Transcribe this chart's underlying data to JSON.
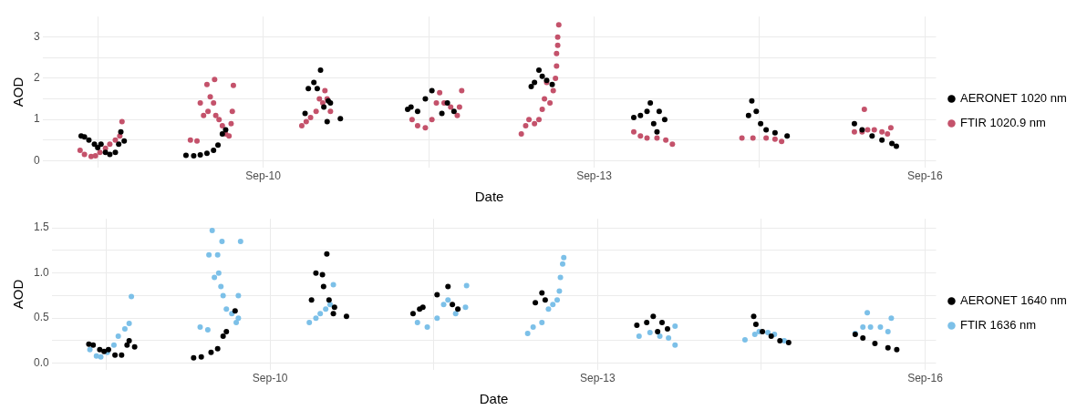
{
  "chart_data": [
    {
      "type": "scatter",
      "xlabel": "Date",
      "ylabel": "AOD",
      "xlim": [
        "--09-08T00:00",
        "--09-16T02:24"
      ],
      "ylim": [
        -0.16,
        3.5
      ],
      "xticks": [
        {
          "value": "--09-08T12:00",
          "label": null
        },
        {
          "value": "--09-10",
          "label": "Sep-10"
        },
        {
          "value": "--09-11T12:00",
          "label": null
        },
        {
          "value": "--09-13",
          "label": "Sep-13"
        },
        {
          "value": "--09-14T12:00",
          "label": null
        },
        {
          "value": "--09-16",
          "label": "Sep-16"
        }
      ],
      "yticks": [
        0,
        {
          "value": 0.5,
          "label": null
        },
        1,
        {
          "value": 1.5,
          "label": null
        },
        2,
        {
          "value": 2.5,
          "label": null
        },
        3
      ],
      "grid": true,
      "legend": "right",
      "marker": "circle",
      "series": [
        {
          "name": "AERONET 1020 nm",
          "color": "#000000",
          "x": [
            "--09-08T08:24",
            "--09-08T09:07",
            "--09-08T10:05",
            "--09-08T11:17",
            "--09-08T12:00",
            "--09-08T12:43",
            "--09-08T13:41",
            "--09-08T14:38",
            "--09-08T15:50",
            "--09-08T16:34",
            "--09-08T17:02",
            "--09-08T17:46",
            "--09-09T07:12",
            "--09-09T08:53",
            "--09-09T10:19",
            "--09-09T11:46",
            "--09-09T13:12",
            "--09-09T14:10",
            "--09-09T15:07",
            "--09-09T15:50",
            "--09-10T09:07",
            "--09-10T09:50",
            "--09-10T11:02",
            "--09-10T11:46",
            "--09-10T12:29",
            "--09-10T13:12",
            "--09-10T13:55",
            "--09-10T14:10",
            "--09-10T14:38",
            "--09-10T16:48",
            "--09-11T07:26",
            "--09-11T08:10",
            "--09-11T09:36",
            "--09-11T11:17",
            "--09-11T12:43",
            "--09-11T14:53",
            "--09-11T16:05",
            "--09-11T17:31",
            "--09-12T10:19",
            "--09-12T11:02",
            "--09-12T12:00",
            "--09-12T12:43",
            "--09-12T13:41",
            "--09-12T14:53",
            "--09-13T08:38",
            "--09-13T10:05",
            "--09-13T11:31",
            "--09-13T12:14",
            "--09-13T12:58",
            "--09-13T13:41",
            "--09-13T14:10",
            "--09-13T15:22",
            "--09-14T09:36",
            "--09-14T10:19",
            "--09-14T11:17",
            "--09-14T12:14",
            "--09-14T13:26",
            "--09-14T15:22",
            "--09-14T18:00",
            "--09-15T08:38",
            "--09-15T10:19",
            "--09-15T12:29",
            "--09-15T14:38",
            "--09-15T16:48",
            "--09-15T17:46"
          ],
          "values": [
            0.6,
            0.58,
            0.5,
            0.4,
            0.32,
            0.4,
            0.2,
            0.15,
            0.2,
            0.4,
            0.7,
            0.48,
            0.13,
            0.12,
            0.14,
            0.18,
            0.25,
            0.38,
            0.65,
            0.75,
            1.15,
            1.75,
            1.9,
            1.75,
            2.2,
            1.3,
            0.95,
            1.45,
            1.4,
            1.02,
            1.25,
            1.3,
            1.2,
            1.5,
            1.7,
            1.15,
            1.4,
            1.2,
            1.8,
            1.9,
            2.2,
            2.05,
            1.95,
            1.85,
            1.05,
            1.1,
            1.2,
            1.4,
            0.9,
            0.7,
            1.2,
            1.0,
            1.1,
            1.45,
            1.2,
            0.9,
            0.75,
            0.68,
            0.6,
            0.9,
            0.75,
            0.6,
            0.5,
            0.42,
            0.35
          ]
        },
        {
          "name": "FTIR 1020.9 nm",
          "color": "#c4526b",
          "x": [
            "--09-08T08:10",
            "--09-08T09:07",
            "--09-08T10:34",
            "--09-08T11:31",
            "--09-08T12:29",
            "--09-08T13:41",
            "--09-08T14:38",
            "--09-08T15:50",
            "--09-08T16:48",
            "--09-08T17:17",
            "--09-09T08:10",
            "--09-09T09:36",
            "--09-09T10:19",
            "--09-09T11:02",
            "--09-09T11:46",
            "--09-09T12:00",
            "--09-09T12:29",
            "--09-09T13:12",
            "--09-09T13:26",
            "--09-09T13:41",
            "--09-09T14:24",
            "--09-09T15:07",
            "--09-09T15:50",
            "--09-09T16:34",
            "--09-09T17:02",
            "--09-09T17:17",
            "--09-09T17:31",
            "--09-10T08:24",
            "--09-10T09:22",
            "--09-10T10:19",
            "--09-10T11:31",
            "--09-10T12:14",
            "--09-10T12:58",
            "--09-10T13:26",
            "--09-10T13:55",
            "--09-10T14:38",
            "--09-11T08:24",
            "--09-11T09:36",
            "--09-11T11:17",
            "--09-11T12:43",
            "--09-11T13:41",
            "--09-11T14:24",
            "--09-11T15:22",
            "--09-11T16:48",
            "--09-11T18:14",
            "--09-11T18:43",
            "--09-11T19:12",
            "--09-12T08:10",
            "--09-12T09:07",
            "--09-12T09:50",
            "--09-12T11:02",
            "--09-12T12:00",
            "--09-12T12:43",
            "--09-12T13:12",
            "--09-12T13:41",
            "--09-12T14:24",
            "--09-12T15:07",
            "--09-12T15:36",
            "--09-12T15:50",
            "--09-12T15:50",
            "--09-12T16:05",
            "--09-12T16:05",
            "--09-12T16:19",
            "--09-13T08:38",
            "--09-13T10:05",
            "--09-13T11:31",
            "--09-13T13:41",
            "--09-13T15:36",
            "--09-13T17:02",
            "--09-14T08:10",
            "--09-14T10:34",
            "--09-14T13:26",
            "--09-14T15:22",
            "--09-14T16:48",
            "--09-15T08:38",
            "--09-15T10:19",
            "--09-15T10:48",
            "--09-15T11:31",
            "--09-15T12:58",
            "--09-15T14:38",
            "--09-15T15:50",
            "--09-15T16:34"
          ],
          "values": [
            0.25,
            0.15,
            0.1,
            0.12,
            0.2,
            0.3,
            0.4,
            0.5,
            0.6,
            0.95,
            0.5,
            0.48,
            1.4,
            1.1,
            1.85,
            1.2,
            1.55,
            1.4,
            1.97,
            1.1,
            1.0,
            0.85,
            0.65,
            0.6,
            0.9,
            1.2,
            1.83,
            0.85,
            0.95,
            1.05,
            1.2,
            1.5,
            1.4,
            1.7,
            1.5,
            1.2,
            1.0,
            0.85,
            0.8,
            1.0,
            1.4,
            1.65,
            1.4,
            1.3,
            1.1,
            1.3,
            1.7,
            0.65,
            0.85,
            1.0,
            0.9,
            1.0,
            1.25,
            1.5,
            1.9,
            1.4,
            1.7,
            2.0,
            2.3,
            2.6,
            2.8,
            3.0,
            3.3,
            0.7,
            0.6,
            0.55,
            0.55,
            0.5,
            0.4,
            0.55,
            0.55,
            0.55,
            0.52,
            0.47,
            0.7,
            0.7,
            1.25,
            0.75,
            0.75,
            0.7,
            0.65,
            0.8
          ]
        }
      ]
    },
    {
      "type": "scatter",
      "xlabel": "Date",
      "ylabel": "AOD",
      "xlim": [
        "--09-08T00:00",
        "--09-16T02:24"
      ],
      "ylim": [
        -0.07,
        1.6
      ],
      "xticks": [
        {
          "value": "--09-08T12:00",
          "label": null
        },
        {
          "value": "--09-10",
          "label": "Sep-10"
        },
        {
          "value": "--09-11T12:00",
          "label": null
        },
        {
          "value": "--09-13",
          "label": "Sep-13"
        },
        {
          "value": "--09-14T12:00",
          "label": null
        },
        {
          "value": "--09-16",
          "label": "Sep-16"
        }
      ],
      "yticks": [
        {
          "value": 0,
          "label": "0.0"
        },
        {
          "value": 0.25,
          "label": null
        },
        0.5,
        {
          "value": 0.75,
          "label": null
        },
        {
          "value": 1,
          "label": "1.0"
        },
        {
          "value": 1.25,
          "label": null
        },
        1.5
      ],
      "grid": true,
      "legend": "right",
      "marker": "circle",
      "series": [
        {
          "name": "AERONET 1640 nm",
          "color": "#000000",
          "x": [
            "--09-08T08:10",
            "--09-08T09:07",
            "--09-08T10:34",
            "--09-08T11:31",
            "--09-08T12:29",
            "--09-08T13:55",
            "--09-08T15:22",
            "--09-08T16:34",
            "--09-08T17:02",
            "--09-08T18:14",
            "--09-09T07:12",
            "--09-09T08:53",
            "--09-09T11:02",
            "--09-09T12:29",
            "--09-09T13:41",
            "--09-09T14:24",
            "--09-09T16:19",
            "--09-10T09:07",
            "--09-10T10:05",
            "--09-10T11:31",
            "--09-10T11:46",
            "--09-10T12:29",
            "--09-10T12:58",
            "--09-10T13:55",
            "--09-10T14:10",
            "--09-10T16:48",
            "--09-11T07:26",
            "--09-11T08:53",
            "--09-11T09:36",
            "--09-11T12:43",
            "--09-11T15:07",
            "--09-11T16:05",
            "--09-11T17:17",
            "--09-12T10:19",
            "--09-12T11:46",
            "--09-12T12:29",
            "--09-13T08:38",
            "--09-13T10:48",
            "--09-13T12:14",
            "--09-13T13:12",
            "--09-13T14:10",
            "--09-13T15:22",
            "--09-14T10:19",
            "--09-14T10:48",
            "--09-14T12:14",
            "--09-14T14:10",
            "--09-14T16:05",
            "--09-14T18:00",
            "--09-15T08:38",
            "--09-15T10:19",
            "--09-15T12:58",
            "--09-15T15:50",
            "--09-15T17:46"
          ],
          "values": [
            0.21,
            0.2,
            0.15,
            0.13,
            0.15,
            0.09,
            0.09,
            0.2,
            0.25,
            0.18,
            0.06,
            0.07,
            0.12,
            0.16,
            0.3,
            0.35,
            0.58,
            0.7,
            1.0,
            0.98,
            0.85,
            1.21,
            0.7,
            0.55,
            0.62,
            0.52,
            0.55,
            0.6,
            0.62,
            0.76,
            0.85,
            0.65,
            0.6,
            0.67,
            0.78,
            0.7,
            0.42,
            0.45,
            0.52,
            0.35,
            0.45,
            0.38,
            0.52,
            0.43,
            0.35,
            0.3,
            0.25,
            0.23,
            0.32,
            0.28,
            0.22,
            0.17,
            0.15
          ]
        },
        {
          "name": "FTIR 1636 nm",
          "color": "#7cc0e8",
          "x": [
            "--09-08T08:24",
            "--09-08T09:50",
            "--09-08T10:48",
            "--09-08T12:14",
            "--09-08T13:41",
            "--09-08T14:38",
            "--09-08T16:05",
            "--09-08T17:02",
            "--09-08T17:31",
            "--09-09T08:38",
            "--09-09T10:19",
            "--09-09T10:34",
            "--09-09T11:17",
            "--09-09T11:46",
            "--09-09T12:29",
            "--09-09T12:43",
            "--09-09T13:12",
            "--09-09T13:26",
            "--09-09T13:41",
            "--09-09T14:24",
            "--09-09T15:36",
            "--09-09T16:34",
            "--09-09T17:02",
            "--09-09T17:02",
            "--09-09T17:31",
            "--09-10T08:38",
            "--09-10T10:05",
            "--09-10T11:02",
            "--09-10T12:14",
            "--09-10T13:12",
            "--09-10T13:55",
            "--09-11T08:24",
            "--09-11T10:34",
            "--09-11T12:43",
            "--09-11T14:10",
            "--09-11T15:07",
            "--09-11T16:48",
            "--09-11T18:58",
            "--09-11T19:12",
            "--09-12T08:38",
            "--09-12T09:50",
            "--09-12T11:46",
            "--09-12T13:12",
            "--09-12T14:10",
            "--09-12T15:07",
            "--09-12T15:36",
            "--09-12T15:50",
            "--09-12T16:19",
            "--09-12T16:34",
            "--09-13T09:07",
            "--09-13T11:31",
            "--09-13T13:41",
            "--09-13T15:36",
            "--09-13T17:02",
            "--09-13T17:02",
            "--09-14T08:24",
            "--09-14T10:34",
            "--09-14T11:31",
            "--09-14T13:26",
            "--09-14T14:53",
            "--09-14T17:02",
            "--09-15T08:38",
            "--09-15T10:19",
            "--09-15T11:17",
            "--09-15T12:00",
            "--09-15T14:10",
            "--09-15T15:50",
            "--09-15T16:34"
          ],
          "values": [
            0.15,
            0.08,
            0.07,
            0.12,
            0.2,
            0.3,
            0.38,
            0.44,
            0.74,
            0.4,
            0.37,
            1.2,
            1.47,
            0.95,
            1.2,
            1.0,
            0.85,
            1.35,
            0.75,
            0.6,
            0.55,
            0.45,
            0.5,
            0.75,
            1.35,
            0.45,
            0.5,
            0.55,
            0.6,
            0.65,
            0.87,
            0.45,
            0.4,
            0.5,
            0.65,
            0.7,
            0.55,
            0.62,
            0.86,
            0.33,
            0.4,
            0.45,
            0.6,
            0.65,
            0.7,
            0.8,
            0.95,
            1.1,
            1.17,
            0.3,
            0.34,
            0.3,
            0.28,
            0.2,
            0.41,
            0.26,
            0.32,
            0.35,
            0.34,
            0.32,
            0.25,
            0.33,
            0.4,
            0.56,
            0.4,
            0.4,
            0.35,
            0.5
          ]
        }
      ]
    }
  ]
}
